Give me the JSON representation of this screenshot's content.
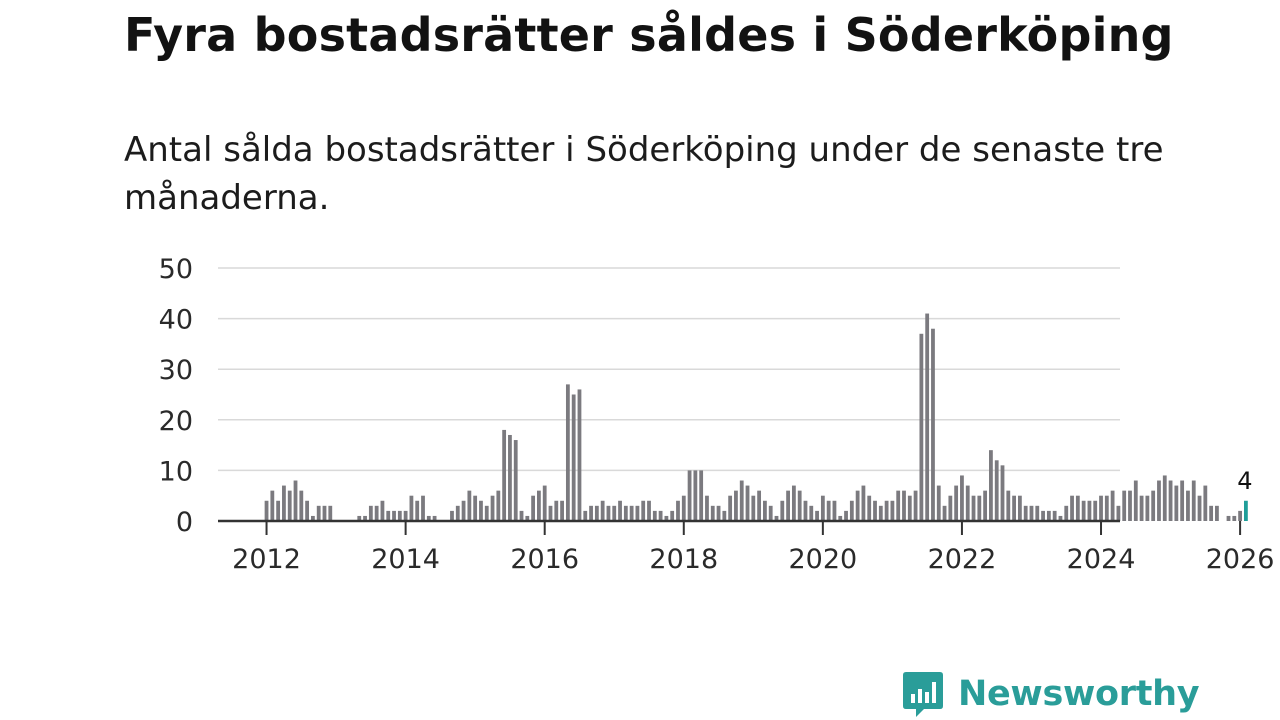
{
  "title": "Fyra bostadsrätter såldes i Söderköping",
  "subtitle": "Antal sålda bostadsrätter i Söderköping under de senaste tre månaderna.",
  "brand": {
    "name": "Newsworthy",
    "icon": "newsworthy-chart-bubble-icon"
  },
  "colors": {
    "bar": "#7b7a7f",
    "highlight": "#1f9e99",
    "grid": "#d9d9d9",
    "axis": "#333333",
    "brand": "#2a9d99"
  },
  "chart_data": {
    "type": "bar",
    "title": "Fyra bostadsrätter såldes i Söderköping",
    "xlabel": "",
    "ylabel": "",
    "ylim": [
      0,
      50
    ],
    "yticks": [
      0,
      10,
      20,
      30,
      40,
      50
    ],
    "xticks": [
      "2012",
      "2014",
      "2016",
      "2018",
      "2020",
      "2022",
      "2024",
      "2026"
    ],
    "start": "2011-01",
    "highlight_label": "4",
    "values": [
      0,
      0,
      0,
      0,
      0,
      0,
      0,
      0,
      0,
      0,
      0,
      0,
      4,
      6,
      4,
      7,
      6,
      8,
      6,
      4,
      1,
      3,
      3,
      3,
      0,
      0,
      0,
      0,
      1,
      1,
      3,
      3,
      4,
      2,
      2,
      2,
      2,
      5,
      4,
      5,
      1,
      1,
      0,
      0,
      2,
      3,
      4,
      6,
      5,
      4,
      3,
      5,
      6,
      18,
      17,
      16,
      2,
      1,
      5,
      6,
      7,
      3,
      4,
      4,
      27,
      25,
      26,
      2,
      3,
      3,
      4,
      3,
      3,
      4,
      3,
      3,
      3,
      4,
      4,
      2,
      2,
      1,
      2,
      4,
      5,
      10,
      10,
      10,
      5,
      3,
      3,
      2,
      5,
      6,
      8,
      7,
      5,
      6,
      4,
      3,
      1,
      4,
      6,
      7,
      6,
      4,
      3,
      2,
      5,
      4,
      4,
      1,
      2,
      4,
      6,
      7,
      5,
      4,
      3,
      4,
      4,
      6,
      6,
      5,
      6,
      37,
      41,
      38,
      7,
      3,
      5,
      7,
      9,
      7,
      5,
      5,
      6,
      14,
      12,
      11,
      6,
      5,
      5,
      3,
      3,
      3,
      2,
      2,
      2,
      1,
      3,
      5,
      5,
      4,
      4,
      4,
      5,
      5,
      6,
      3,
      6,
      6,
      8,
      5,
      5,
      6,
      8,
      9,
      8,
      7,
      8,
      6,
      8,
      5,
      7,
      3,
      3,
      0,
      1,
      1,
      2,
      4
    ]
  }
}
